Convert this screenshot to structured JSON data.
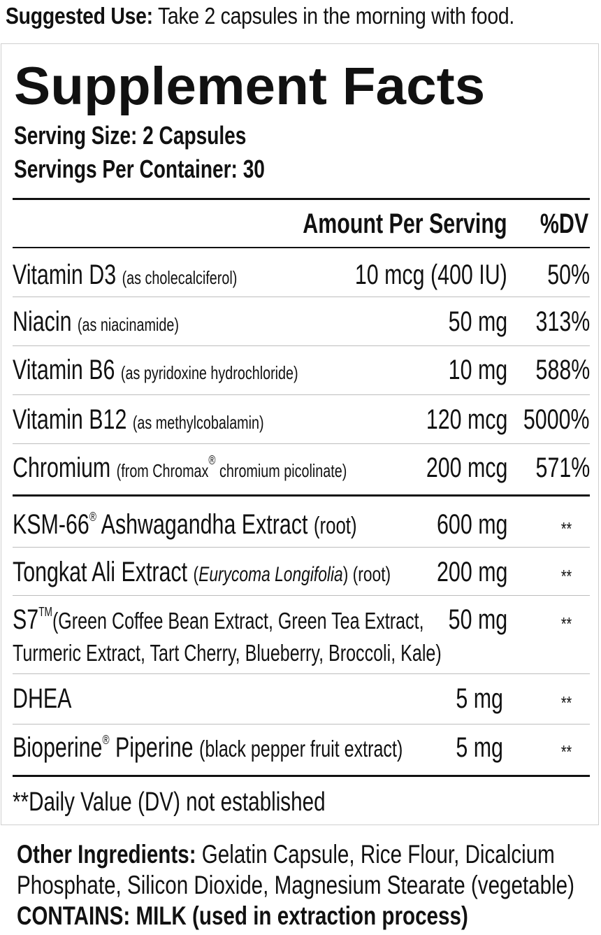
{
  "suggested_use": {
    "label": "Suggested Use:",
    "text": "Take 2 capsules in the morning with food."
  },
  "facts": {
    "title": "Supplement Facts",
    "serving_size": "Serving Size: 2 Capsules",
    "servings_per_container": "Servings Per Container: 30",
    "header_amount": "Amount Per Serving",
    "header_dv": "%DV",
    "vitamins": [
      {
        "name": "Vitamin D3",
        "detail": "(as cholecalciferol)",
        "amount": "10 mcg (400 IU)",
        "dv": "50%"
      },
      {
        "name": "Niacin",
        "detail": "(as niacinamide)",
        "amount": "50 mg",
        "dv": "313%"
      },
      {
        "name": "Vitamin B6",
        "detail": "(as pyridoxine hydrochloride)",
        "amount": "10 mg",
        "dv": "588%"
      },
      {
        "name": "Vitamin B12",
        "detail": "(as methylcobalamin)",
        "amount": "120 mcg",
        "dv": "5000%"
      },
      {
        "name": "Chromium",
        "detail_pre": "(from Chromax",
        "detail_mark": "®",
        "detail_post": " chromium picolinate)",
        "amount": "200 mcg",
        "dv": "571%"
      }
    ],
    "others": [
      {
        "name_pre": "KSM-66",
        "mark": "®",
        "name_post": " Ashwagandha Extract",
        "detail": "(root)",
        "amount": "600 mg",
        "dv": "**"
      },
      {
        "name": "Tongkat Ali Extract",
        "detail_open": "(",
        "detail_italic": "Eurycoma Longifolia",
        "detail_close": ") (root)",
        "amount": "200 mg",
        "dv": "**"
      },
      {
        "name_pre": "S7",
        "mark": "TM",
        "line1": "(Green Coffee Bean Extract, Green Tea Extract,",
        "line2": "Turmeric Extract, Tart Cherry, Blueberry, Broccoli, Kale)",
        "amount": "50 mg",
        "dv": "**"
      },
      {
        "name": "DHEA",
        "amount": "5 mg",
        "dv": "**"
      },
      {
        "name_pre": "Bioperine",
        "mark": "®",
        "name_post": " Piperine",
        "detail": "(black pepper fruit extract)",
        "amount": "5 mg",
        "dv": "**"
      }
    ],
    "footnote": "**Daily Value (DV) not established"
  },
  "other_ingredients": {
    "label": "Other Ingredients:",
    "line1": "Gelatin Capsule, Rice Flour, Dicalcium",
    "line2": "Phosphate, Silicon Dioxide, Magnesium Stearate (vegetable)",
    "contains": "CONTAINS: MILK (used in extraction process)"
  }
}
